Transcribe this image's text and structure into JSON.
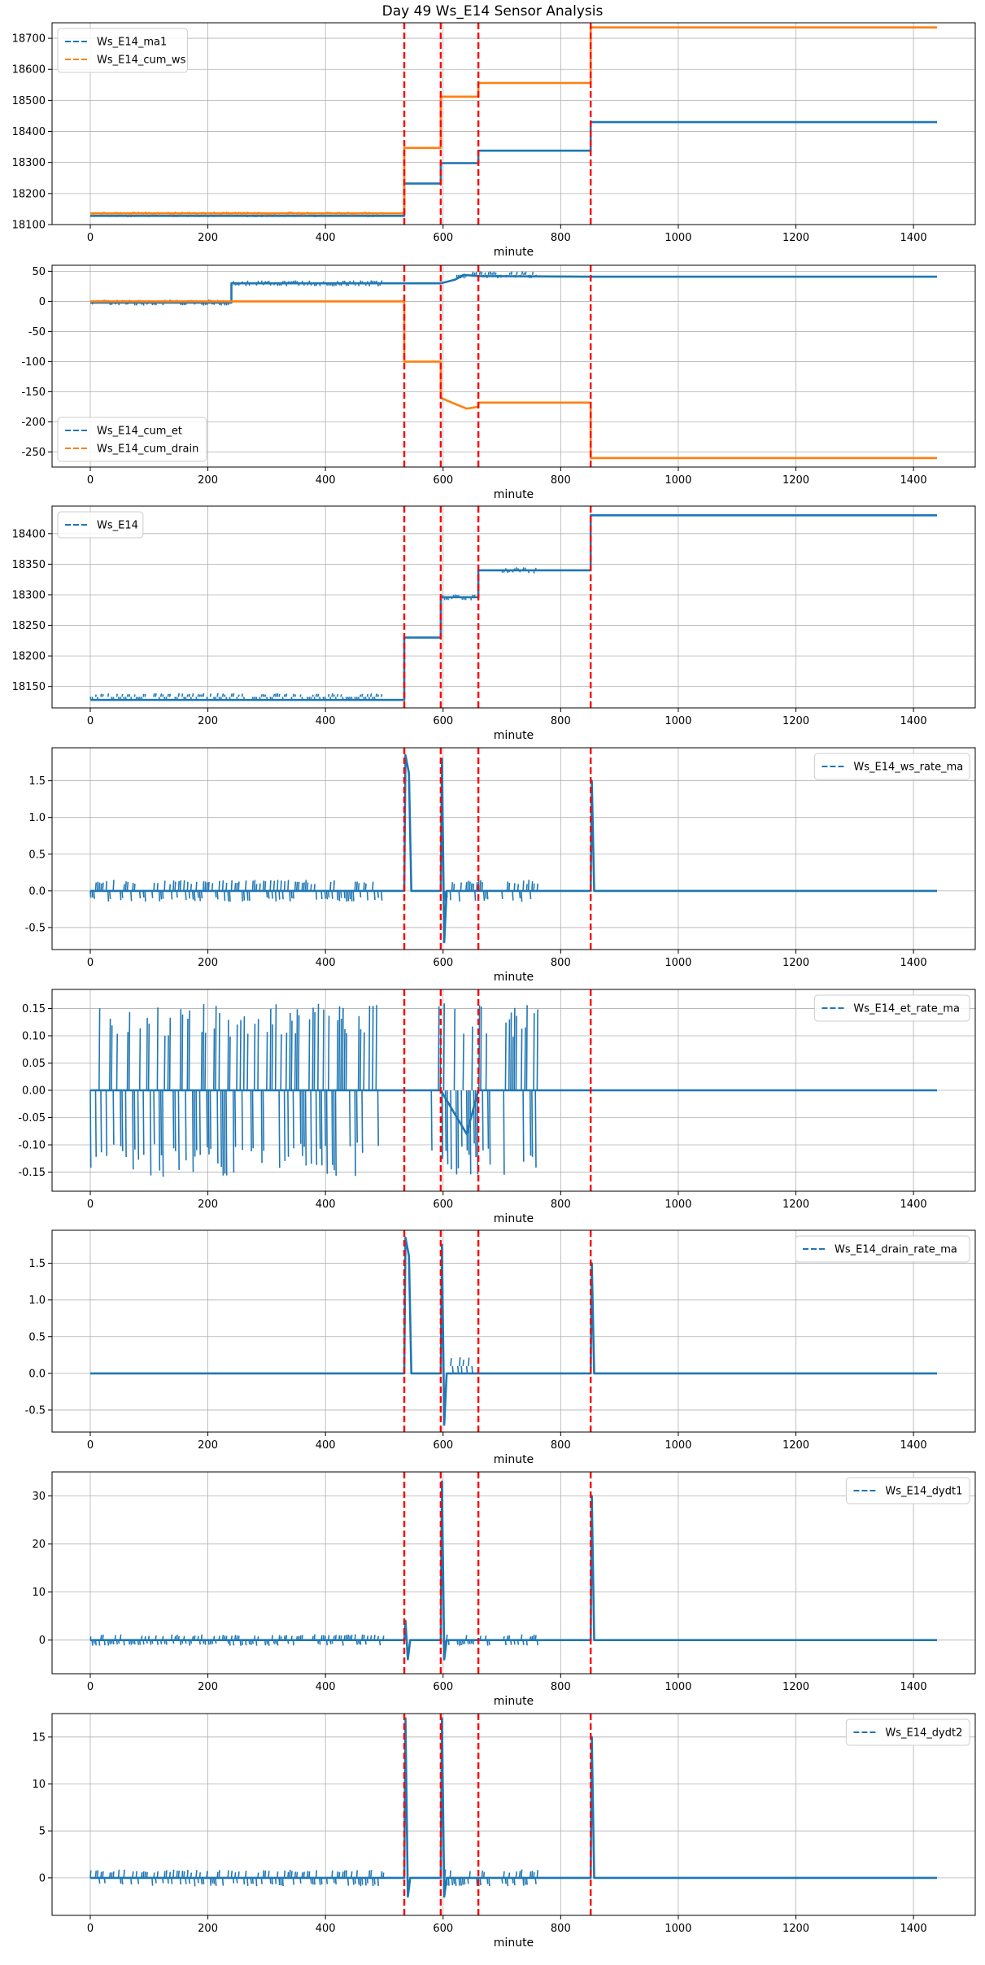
{
  "figure": {
    "title": "Day 49 Ws_E14 Sensor Analysis",
    "colors": {
      "blue": "#1f77b4",
      "orange": "#ff7f0e",
      "vline": "#ff0000",
      "grid": "#b0b0b0"
    }
  },
  "chart_data": [
    {
      "id": "ma1-cumws",
      "type": "line",
      "xlabel": "minute",
      "xlim": [
        -65,
        1505
      ],
      "ylim": [
        18100,
        18750
      ],
      "xticks": [
        0,
        200,
        400,
        600,
        800,
        1000,
        1200,
        1400
      ],
      "yticks": [
        18100,
        18200,
        18300,
        18400,
        18500,
        18600,
        18700
      ],
      "legend_position": "upper-left",
      "vlines": [
        534,
        596,
        660,
        851
      ],
      "series": [
        {
          "name": "Ws_E14_ma1",
          "color": "#1f77b4",
          "points": [
            [
              0,
              18128
            ],
            [
              534,
              18128
            ],
            [
              534,
              18232
            ],
            [
              596,
              18232
            ],
            [
              596,
              18298
            ],
            [
              660,
              18298
            ],
            [
              660,
              18338
            ],
            [
              851,
              18338
            ],
            [
              851,
              18430
            ],
            [
              1440,
              18430
            ]
          ],
          "noise": [
            [
              0,
              500,
              18128,
              4
            ]
          ]
        },
        {
          "name": "Ws_E14_cum_ws",
          "color": "#ff7f0e",
          "points": [
            [
              0,
              18136
            ],
            [
              534,
              18136
            ],
            [
              534,
              18347
            ],
            [
              596,
              18347
            ],
            [
              596,
              18512
            ],
            [
              660,
              18512
            ],
            [
              660,
              18556
            ],
            [
              851,
              18556
            ],
            [
              851,
              18735
            ],
            [
              1440,
              18735
            ]
          ],
          "noise": [
            [
              0,
              500,
              18136,
              6
            ]
          ]
        }
      ]
    },
    {
      "id": "cumet-cumdrain",
      "type": "line",
      "xlabel": "minute",
      "xlim": [
        -65,
        1505
      ],
      "ylim": [
        -275,
        60
      ],
      "xticks": [
        0,
        200,
        400,
        600,
        800,
        1000,
        1200,
        1400
      ],
      "yticks": [
        -250,
        -200,
        -150,
        -100,
        -50,
        0,
        50
      ],
      "legend_position": "lower-left",
      "vlines": [
        534,
        596,
        660,
        851
      ],
      "series": [
        {
          "name": "Ws_E14_cum_et",
          "color": "#1f77b4",
          "points": [
            [
              0,
              -2
            ],
            [
              240,
              -2
            ],
            [
              240,
              30
            ],
            [
              534,
              30
            ],
            [
              596,
              30
            ],
            [
              620,
              36
            ],
            [
              635,
              44
            ],
            [
              660,
              42
            ],
            [
              851,
              41
            ],
            [
              1440,
              41
            ]
          ],
          "noise": [
            [
              0,
              240,
              -2,
              5
            ],
            [
              240,
              500,
              30,
              5
            ],
            [
              620,
              760,
              44,
              6
            ]
          ]
        },
        {
          "name": "Ws_E14_cum_drain",
          "color": "#ff7f0e",
          "points": [
            [
              0,
              0
            ],
            [
              534,
              0
            ],
            [
              534,
              -100
            ],
            [
              596,
              -100
            ],
            [
              596,
              -160
            ],
            [
              620,
              -170
            ],
            [
              640,
              -178
            ],
            [
              660,
              -175
            ],
            [
              660,
              -168
            ],
            [
              851,
              -168
            ],
            [
              851,
              -260
            ],
            [
              1440,
              -260
            ]
          ],
          "noise": []
        }
      ]
    },
    {
      "id": "ws",
      "type": "line",
      "xlabel": "minute",
      "xlim": [
        -65,
        1505
      ],
      "ylim": [
        18115,
        18445
      ],
      "xticks": [
        0,
        200,
        400,
        600,
        800,
        1000,
        1200,
        1400
      ],
      "yticks": [
        18150,
        18200,
        18250,
        18300,
        18350,
        18400
      ],
      "legend_position": "upper-left",
      "vlines": [
        534,
        596,
        660,
        851
      ],
      "series": [
        {
          "name": "Ws_E14",
          "color": "#1f77b4",
          "points": [
            [
              0,
              18128
            ],
            [
              534,
              18128
            ],
            [
              534,
              18230
            ],
            [
              596,
              18230
            ],
            [
              596,
              18296
            ],
            [
              660,
              18296
            ],
            [
              660,
              18340
            ],
            [
              851,
              18340
            ],
            [
              851,
              18430
            ],
            [
              1440,
              18430
            ]
          ],
          "noise": [
            [
              0,
              500,
              18133,
              6
            ],
            [
              596,
              660,
              18296,
              5
            ],
            [
              700,
              760,
              18340,
              5
            ]
          ]
        }
      ]
    },
    {
      "id": "ws-rate",
      "type": "line",
      "xlabel": "minute",
      "xlim": [
        -65,
        1505
      ],
      "ylim": [
        -0.8,
        1.95
      ],
      "xticks": [
        0,
        200,
        400,
        600,
        800,
        1000,
        1200,
        1400
      ],
      "yticks": [
        -0.5,
        0.0,
        0.5,
        1.0,
        1.5
      ],
      "legend_position": "upper-right",
      "vlines": [
        534,
        596,
        660,
        851
      ],
      "series": [
        {
          "name": "Ws_E14_ws_rate_ma",
          "color": "#1f77b4",
          "points": [
            [
              0,
              0
            ],
            [
              534,
              0
            ],
            [
              536,
              1.85
            ],
            [
              542,
              1.6
            ],
            [
              546,
              0
            ],
            [
              596,
              0
            ],
            [
              598,
              1.8
            ],
            [
              602,
              -0.7
            ],
            [
              606,
              0
            ],
            [
              851,
              0
            ],
            [
              853,
              1.5
            ],
            [
              857,
              0
            ],
            [
              1440,
              0
            ]
          ],
          "noise": [
            [
              0,
              500,
              0,
              0.15
            ],
            [
              600,
              680,
              0,
              0.15
            ],
            [
              700,
              760,
              0,
              0.15
            ]
          ]
        }
      ]
    },
    {
      "id": "et-rate",
      "type": "line",
      "xlabel": "minute",
      "xlim": [
        -65,
        1505
      ],
      "ylim": [
        -0.185,
        0.185
      ],
      "xticks": [
        0,
        200,
        400,
        600,
        800,
        1000,
        1200,
        1400
      ],
      "yticks": [
        -0.15,
        -0.1,
        -0.05,
        0.0,
        0.05,
        0.1,
        0.15
      ],
      "legend_position": "upper-right",
      "vlines": [
        534,
        596,
        660,
        851
      ],
      "series": [
        {
          "name": "Ws_E14_et_rate_ma",
          "color": "#1f77b4",
          "points": [
            [
              0,
              0
            ],
            [
              596,
              0
            ],
            [
              640,
              -0.08
            ],
            [
              660,
              0
            ],
            [
              700,
              0
            ],
            [
              1440,
              0
            ]
          ],
          "noise": [
            [
              0,
              500,
              0,
              0.16
            ],
            [
              580,
              680,
              0,
              0.16
            ],
            [
              700,
              760,
              0,
              0.16
            ]
          ]
        }
      ]
    },
    {
      "id": "drain-rate",
      "type": "line",
      "xlabel": "minute",
      "xlim": [
        -65,
        1505
      ],
      "ylim": [
        -0.8,
        1.95
      ],
      "xticks": [
        0,
        200,
        400,
        600,
        800,
        1000,
        1200,
        1400
      ],
      "yticks": [
        -0.5,
        0.0,
        0.5,
        1.0,
        1.5
      ],
      "legend_position": "upper-right",
      "vlines": [
        534,
        596,
        660,
        851
      ],
      "series": [
        {
          "name": "Ws_E14_drain_rate_ma",
          "color": "#1f77b4",
          "points": [
            [
              0,
              0
            ],
            [
              534,
              0
            ],
            [
              536,
              1.85
            ],
            [
              542,
              1.6
            ],
            [
              546,
              0
            ],
            [
              596,
              0
            ],
            [
              598,
              1.75
            ],
            [
              602,
              -0.7
            ],
            [
              606,
              0
            ],
            [
              851,
              0
            ],
            [
              853,
              1.5
            ],
            [
              857,
              0
            ],
            [
              1440,
              0
            ]
          ],
          "noise": [
            [
              610,
              650,
              0.1,
              0.12
            ]
          ]
        }
      ]
    },
    {
      "id": "dydt1",
      "type": "line",
      "xlabel": "minute",
      "xlim": [
        -65,
        1505
      ],
      "ylim": [
        -7,
        35
      ],
      "xticks": [
        0,
        200,
        400,
        600,
        800,
        1000,
        1200,
        1400
      ],
      "yticks": [
        0,
        10,
        20,
        30
      ],
      "legend_position": "upper-right",
      "vlines": [
        534,
        596,
        660,
        851
      ],
      "series": [
        {
          "name": "Ws_E14_dydt1",
          "color": "#1f77b4",
          "points": [
            [
              0,
              0
            ],
            [
              534,
              0
            ],
            [
              536,
              4
            ],
            [
              540,
              -4
            ],
            [
              544,
              0
            ],
            [
              596,
              0
            ],
            [
              598,
              33
            ],
            [
              602,
              -4
            ],
            [
              606,
              0
            ],
            [
              851,
              0
            ],
            [
              853,
              30
            ],
            [
              857,
              0
            ],
            [
              1440,
              0
            ]
          ],
          "noise": [
            [
              0,
              500,
              0,
              1.2
            ],
            [
              600,
              680,
              0,
              1.2
            ],
            [
              700,
              760,
              0,
              1.2
            ]
          ]
        }
      ]
    },
    {
      "id": "dydt2",
      "type": "line",
      "xlabel": "minute",
      "xlim": [
        -65,
        1505
      ],
      "ylim": [
        -4,
        17.5
      ],
      "xticks": [
        0,
        200,
        400,
        600,
        800,
        1000,
        1200,
        1400
      ],
      "yticks": [
        0,
        5,
        10,
        15
      ],
      "legend_position": "upper-right",
      "vlines": [
        534,
        596,
        660,
        851
      ],
      "series": [
        {
          "name": "Ws_E14_dydt2",
          "color": "#1f77b4",
          "points": [
            [
              0,
              0
            ],
            [
              534,
              0
            ],
            [
              536,
              17
            ],
            [
              540,
              -2
            ],
            [
              544,
              0
            ],
            [
              596,
              0
            ],
            [
              598,
              17
            ],
            [
              602,
              -2
            ],
            [
              606,
              0
            ],
            [
              851,
              0
            ],
            [
              853,
              15
            ],
            [
              857,
              0
            ],
            [
              1440,
              0
            ]
          ],
          "noise": [
            [
              0,
              500,
              0,
              0.9
            ],
            [
              600,
              680,
              0,
              0.9
            ],
            [
              700,
              760,
              0,
              0.9
            ]
          ]
        }
      ]
    }
  ]
}
